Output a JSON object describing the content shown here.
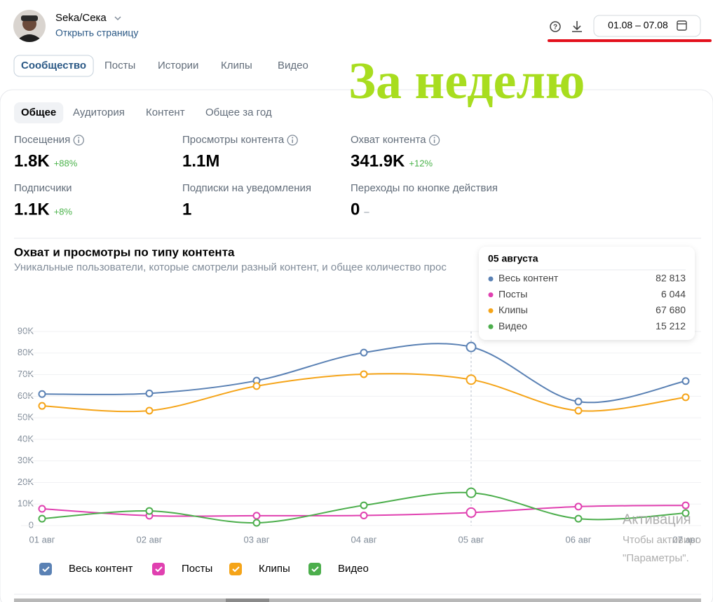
{
  "header": {
    "profile_name": "Seka/Сека",
    "open_page": "Открыть страницу",
    "date_range": "01.08 – 07.08"
  },
  "tabs": {
    "items": [
      "Сообщество",
      "Посты",
      "Истории",
      "Клипы",
      "Видео"
    ],
    "selected": 0
  },
  "overlay_text": "За неделю",
  "subtabs": {
    "items": [
      "Общее",
      "Аудитория",
      "Контент",
      "Общее за год"
    ],
    "selected": 0
  },
  "stats": [
    {
      "label": "Посещения",
      "value": "1.8K",
      "change": "+88%",
      "info": true
    },
    {
      "label": "Просмотры контента",
      "value": "1.1M",
      "info": true
    },
    {
      "label": "Охват контента",
      "value": "341.9K",
      "change": "+12%",
      "info": true
    },
    {
      "label": "Подписчики",
      "value": "1.1K",
      "change": "+8%"
    },
    {
      "label": "Подписки на уведомления",
      "value": "1"
    },
    {
      "label": "Переходы по кнопке действия",
      "value": "0",
      "change": "–"
    }
  ],
  "chart_data": {
    "type": "line",
    "title": "Охват и просмотры по типу контента",
    "subtitle": "Уникальные пользователи, которые смотрели разный контент, и общее количество прос",
    "categories": [
      "01 авг",
      "02 авг",
      "03 авг",
      "04 авг",
      "05 авг",
      "06 авг",
      "07 авг"
    ],
    "series": [
      {
        "name": "Весь контент",
        "color": "#5a81b4",
        "values": [
          61000,
          61300,
          67200,
          80200,
          82813,
          57500,
          67000
        ]
      },
      {
        "name": "Посты",
        "color": "#e040b0",
        "values": [
          7800,
          4600,
          4600,
          4700,
          6044,
          8800,
          9400
        ]
      },
      {
        "name": "Клипы",
        "color": "#f5a418",
        "values": [
          55500,
          53300,
          64700,
          70200,
          67680,
          53300,
          59500
        ]
      },
      {
        "name": "Видео",
        "color": "#4cae4c",
        "values": [
          3200,
          6800,
          1300,
          9400,
          15212,
          3200,
          5800
        ]
      }
    ],
    "ylim": [
      0,
      90000
    ],
    "yticks": [
      0,
      {
        "value": 10000,
        "label": "10K"
      },
      {
        "value": 20000,
        "label": "20K"
      },
      {
        "value": 30000,
        "label": "30K"
      },
      {
        "value": 40000,
        "label": "40K"
      },
      {
        "value": 50000,
        "label": "50K"
      },
      {
        "value": 60000,
        "label": "60K"
      },
      {
        "value": 70000,
        "label": "70K"
      },
      {
        "value": 80000,
        "label": "80K"
      },
      {
        "value": 90000,
        "label": "90K"
      }
    ],
    "grid": true,
    "legend": "bottom",
    "hover_index": 4
  },
  "tooltip": {
    "title": "05 августа",
    "values": [
      "82 813",
      "6 044",
      "67 680",
      "15 212"
    ]
  },
  "watermark": [
    "Активация",
    "Чтобы активиро",
    "\"Параметры\"."
  ]
}
